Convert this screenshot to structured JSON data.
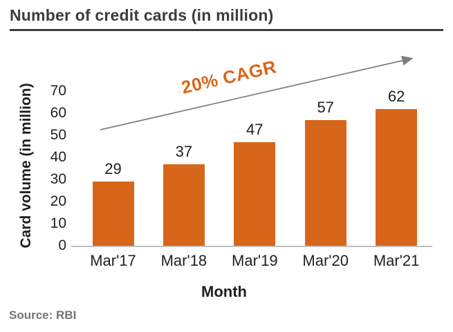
{
  "header": {
    "title": "Number of credit cards (in million)"
  },
  "source": "Source: RBI",
  "colors": {
    "bar": "#d8661a",
    "annotation": "#d8661a",
    "arrow": "#7f7f7f",
    "axis_line": "#bfbfbf",
    "title": "#3c3c3c",
    "text": "#1f1f1f",
    "source": "#737373"
  },
  "chart_data": {
    "type": "bar",
    "title": "Number of credit cards (in million)",
    "categories": [
      "Mar'17",
      "Mar'18",
      "Mar'19",
      "Mar'20",
      "Mar'21"
    ],
    "values": [
      29,
      37,
      47,
      57,
      62
    ],
    "xlabel": "Month",
    "ylabel": "Card volume (in million)",
    "yticks": [
      0,
      10,
      20,
      30,
      40,
      50,
      60,
      70
    ],
    "ylim": [
      0,
      70
    ],
    "grid": false,
    "legend": false,
    "annotation": "20% CAGR",
    "annotation_note": "upward trend arrow from first bar toward last bar"
  }
}
